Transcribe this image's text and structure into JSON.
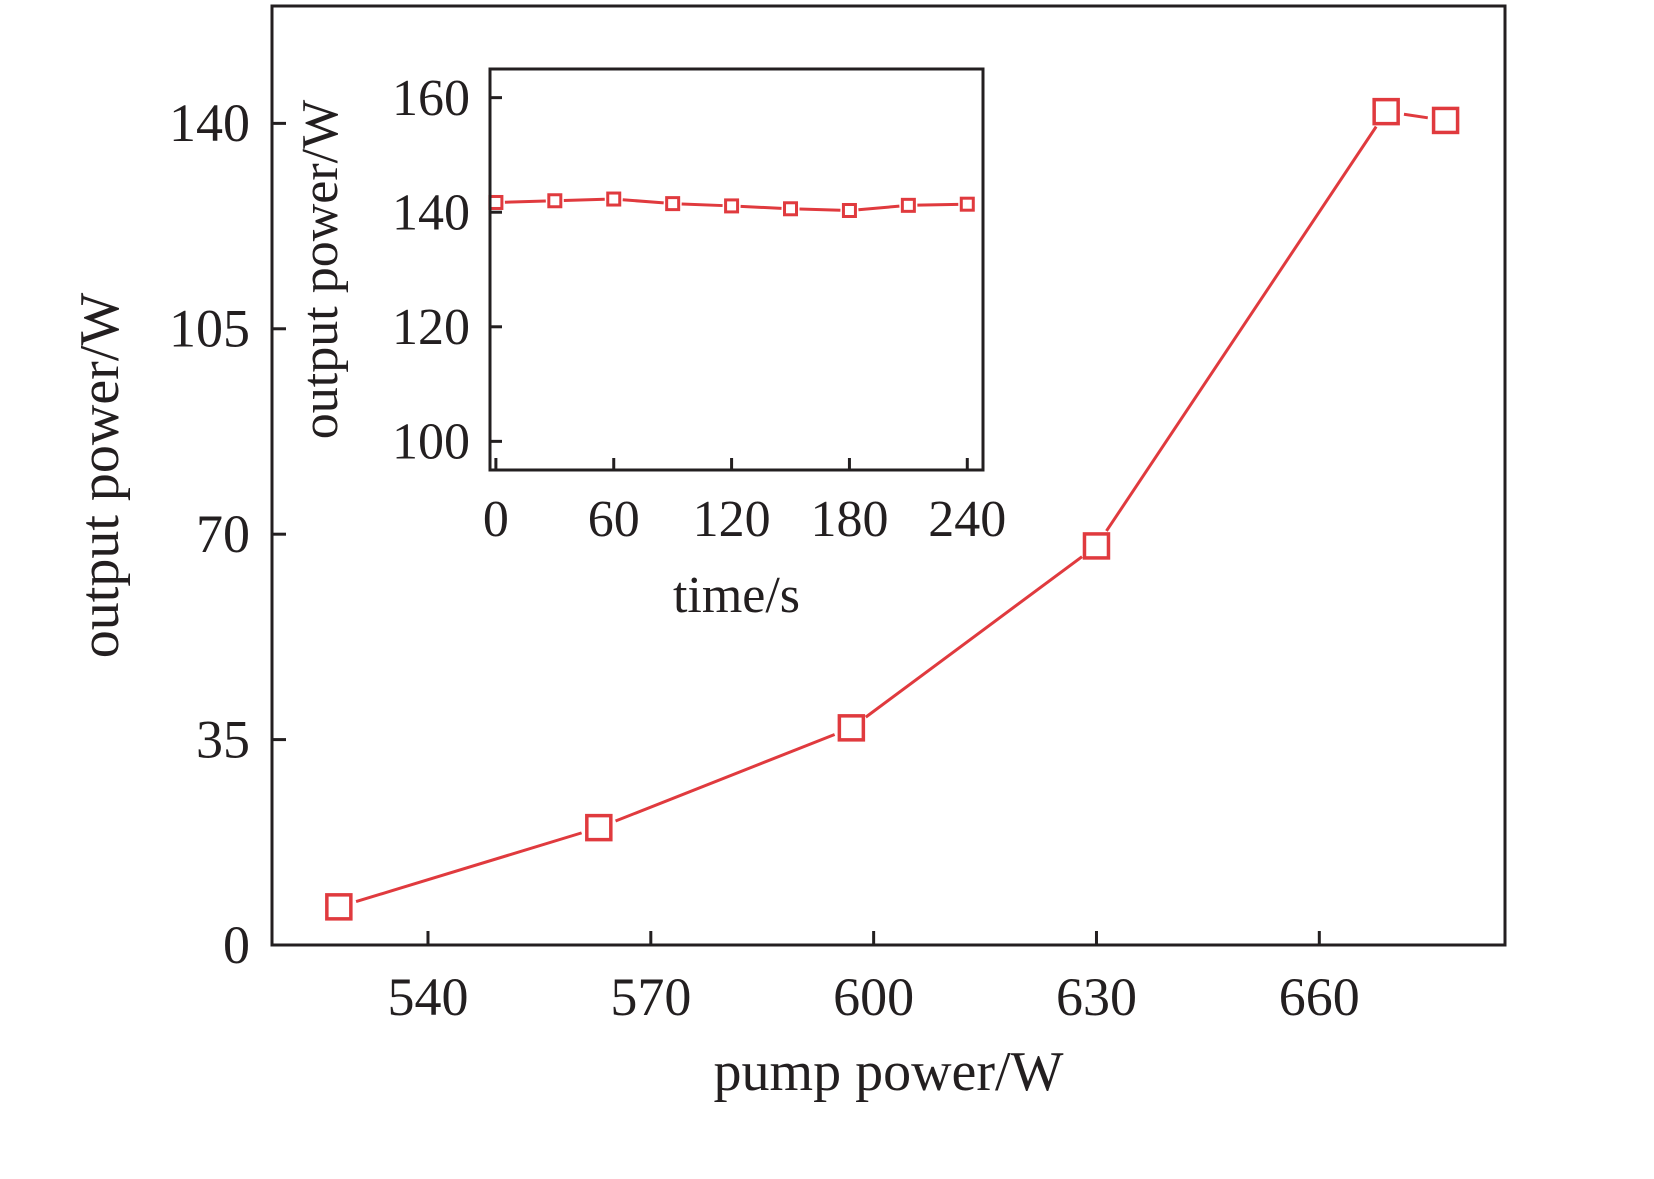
{
  "colors": {
    "axis": "#231f20",
    "series": "#e03a3e",
    "background": "#ffffff"
  },
  "chart_data": [
    {
      "type": "line",
      "xlabel": "pump power/W",
      "ylabel": "output power/W",
      "xlim": [
        519,
        685
      ],
      "ylim": [
        0,
        160
      ],
      "xticks": [
        540,
        570,
        600,
        630,
        660
      ],
      "yticks": [
        0,
        35,
        70,
        105,
        140
      ],
      "grid": false,
      "marker": "open-square",
      "series": [
        {
          "x": [
            528,
            563,
            597,
            630,
            669,
            677
          ],
          "y": [
            6.5,
            20,
            37,
            68,
            142,
            140.5
          ]
        }
      ]
    },
    {
      "type": "line",
      "inset": true,
      "xlabel": "time/s",
      "ylabel": "output power/W",
      "xlim": [
        -3,
        248
      ],
      "ylim": [
        95,
        165
      ],
      "xticks": [
        0,
        60,
        120,
        180,
        240
      ],
      "yticks": [
        100,
        120,
        140,
        160
      ],
      "grid": false,
      "marker": "open-square",
      "series": [
        {
          "x": [
            0,
            30,
            60,
            90,
            120,
            150,
            180,
            210,
            240
          ],
          "y": [
            141.7,
            142.0,
            142.3,
            141.5,
            141.1,
            140.6,
            140.3,
            141.2,
            141.4
          ]
        }
      ]
    }
  ]
}
